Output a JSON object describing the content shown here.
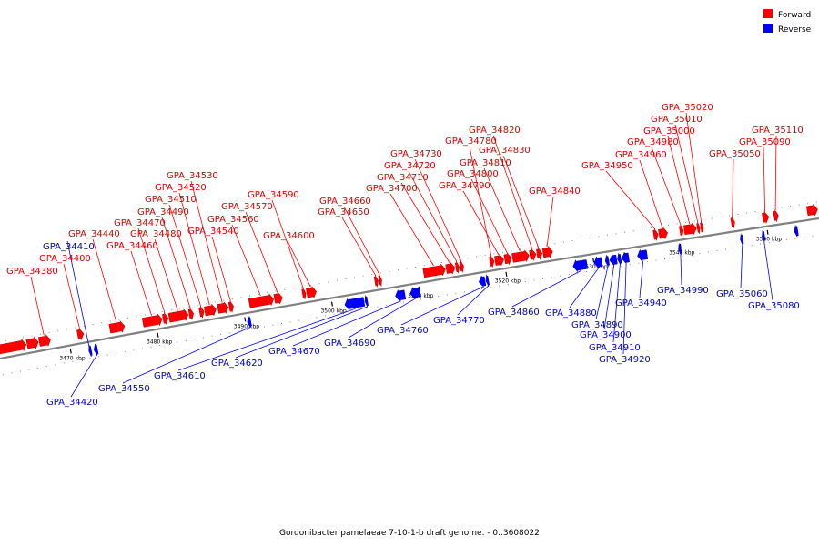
{
  "legend": [
    {
      "label": "Forward",
      "color": "#ff0000"
    },
    {
      "label": "Reverse",
      "color": "#0000ff"
    }
  ],
  "caption": "Gordonibacter pamelaeae 7-10-1-b draft genome. - 0..3608022",
  "colors": {
    "forward": "#ff0000",
    "reverse": "#0000ff",
    "backbone": "#808080",
    "tick": "#000000"
  },
  "axis": {
    "start_kbp": 3462,
    "end_kbp": 3556,
    "unit": "kbp"
  },
  "scale_ticks": [
    {
      "kbp": 3470,
      "label": "3470 kbp"
    },
    {
      "kbp": 3480,
      "label": "3480 kbp"
    },
    {
      "kbp": 3490,
      "label": "3490 kbp"
    },
    {
      "kbp": 3500,
      "label": "3500 kbp"
    },
    {
      "kbp": 3510,
      "label": "3510 kbp"
    },
    {
      "kbp": 3520,
      "label": "3520 kbp"
    },
    {
      "kbp": 3530,
      "label": "3530 kbp"
    },
    {
      "kbp": 3540,
      "label": "3540 kbp"
    },
    {
      "kbp": 3550,
      "label": "3550 kbp"
    }
  ],
  "genes": [
    {
      "label": "",
      "strand": "+",
      "start": 3462.0,
      "end": 3465.2
    },
    {
      "label": "",
      "strand": "+",
      "start": 3465.3,
      "end": 3466.6
    },
    {
      "label": "GPA_34380",
      "strand": "+",
      "start": 3466.7,
      "end": 3468.0
    },
    {
      "label": "GPA_34400",
      "strand": "+",
      "start": 3471.1,
      "end": 3471.8
    },
    {
      "label": "GPA_34410",
      "strand": "-",
      "start": 3472.0,
      "end": 3472.3
    },
    {
      "label": "GPA_34420",
      "strand": "-",
      "start": 3472.6,
      "end": 3473.0
    },
    {
      "label": "GPA_34440",
      "strand": "+",
      "start": 3474.8,
      "end": 3476.5
    },
    {
      "label": "GPA_34460",
      "strand": "+",
      "start": 3478.6,
      "end": 3480.8
    },
    {
      "label": "GPA_34470",
      "strand": "+",
      "start": 3480.9,
      "end": 3481.5
    },
    {
      "label": "GPA_34480",
      "strand": "+",
      "start": 3481.6,
      "end": 3483.8
    },
    {
      "label": "GPA_34490",
      "strand": "+",
      "start": 3483.9,
      "end": 3484.4
    },
    {
      "label": "GPA_34510",
      "strand": "+",
      "start": 3485.1,
      "end": 3485.6
    },
    {
      "label": "GPA_34520",
      "strand": "+",
      "start": 3485.7,
      "end": 3487.0
    },
    {
      "label": "GPA_34530",
      "strand": "+",
      "start": 3487.2,
      "end": 3488.4
    },
    {
      "label": "GPA_34540",
      "strand": "+",
      "start": 3488.5,
      "end": 3489.0
    },
    {
      "label": "GPA_34550",
      "strand": "-",
      "start": 3490.2,
      "end": 3490.6
    },
    {
      "label": "GPA_34560",
      "strand": "+",
      "start": 3490.8,
      "end": 3493.6
    },
    {
      "label": "GPA_34570",
      "strand": "+",
      "start": 3493.7,
      "end": 3494.6
    },
    {
      "label": "GPA_34590",
      "strand": "+",
      "start": 3496.9,
      "end": 3497.3
    },
    {
      "label": "GPA_34600",
      "strand": "+",
      "start": 3497.4,
      "end": 3498.5
    },
    {
      "label": "GPA_34610",
      "strand": "-",
      "start": 3501.4,
      "end": 3503.6
    },
    {
      "label": "GPA_34620",
      "strand": "-",
      "start": 3503.7,
      "end": 3504.0
    },
    {
      "label": "GPA_34650",
      "strand": "+",
      "start": 3505.2,
      "end": 3505.6
    },
    {
      "label": "GPA_34660",
      "strand": "+",
      "start": 3505.7,
      "end": 3506.0
    },
    {
      "label": "GPA_34670",
      "strand": "-",
      "start": 3507.2,
      "end": 3508.3
    },
    {
      "label": "GPA_34690",
      "strand": "-",
      "start": 3508.9,
      "end": 3510.0
    },
    {
      "label": "GPA_34700",
      "strand": "+",
      "start": 3510.8,
      "end": 3513.3
    },
    {
      "label": "GPA_34710",
      "strand": "+",
      "start": 3513.4,
      "end": 3514.4
    },
    {
      "label": "GPA_34720",
      "strand": "+",
      "start": 3514.5,
      "end": 3514.9
    },
    {
      "label": "GPA_34730",
      "strand": "+",
      "start": 3515.0,
      "end": 3515.4
    },
    {
      "label": "GPA_34760",
      "strand": "-",
      "start": 3516.8,
      "end": 3517.5
    },
    {
      "label": "GPA_34770",
      "strand": "-",
      "start": 3517.6,
      "end": 3517.9
    },
    {
      "label": "GPA_34780",
      "strand": "+",
      "start": 3518.4,
      "end": 3518.9
    },
    {
      "label": "GPA_34790",
      "strand": "+",
      "start": 3519.0,
      "end": 3520.0
    },
    {
      "label": "GPA_34800",
      "strand": "+",
      "start": 3520.1,
      "end": 3520.9
    },
    {
      "label": "GPA_34810",
      "strand": "+",
      "start": 3521.0,
      "end": 3522.9
    },
    {
      "label": "GPA_34820",
      "strand": "+",
      "start": 3523.0,
      "end": 3523.7
    },
    {
      "label": "GPA_34830",
      "strand": "+",
      "start": 3523.8,
      "end": 3524.4
    },
    {
      "label": "GPA_34840",
      "strand": "+",
      "start": 3524.5,
      "end": 3525.6
    },
    {
      "label": "GPA_34860",
      "strand": "-",
      "start": 3527.6,
      "end": 3529.2
    },
    {
      "label": "GPA_34880",
      "strand": "-",
      "start": 3530.0,
      "end": 3530.9
    },
    {
      "label": "GPA_34890",
      "strand": "-",
      "start": 3531.3,
      "end": 3531.7
    },
    {
      "label": "GPA_34900",
      "strand": "-",
      "start": 3531.8,
      "end": 3532.6
    },
    {
      "label": "GPA_34910",
      "strand": "-",
      "start": 3532.7,
      "end": 3533.1
    },
    {
      "label": "GPA_34920",
      "strand": "-",
      "start": 3533.2,
      "end": 3534.0
    },
    {
      "label": "GPA_34940",
      "strand": "-",
      "start": 3535.0,
      "end": 3536.1
    },
    {
      "label": "GPA_34950",
      "strand": "+",
      "start": 3537.2,
      "end": 3537.7
    },
    {
      "label": "GPA_34960",
      "strand": "+",
      "start": 3537.8,
      "end": 3538.8
    },
    {
      "label": "GPA_34980",
      "strand": "+",
      "start": 3540.2,
      "end": 3540.6
    },
    {
      "label": "GPA_34990",
      "strand": "-",
      "start": 3539.7,
      "end": 3540.0
    },
    {
      "label": "GPA_35000",
      "strand": "+",
      "start": 3540.7,
      "end": 3542.1
    },
    {
      "label": "GPA_35010",
      "strand": "+",
      "start": 3542.2,
      "end": 3542.5
    },
    {
      "label": "GPA_35020",
      "strand": "+",
      "start": 3542.6,
      "end": 3542.9
    },
    {
      "label": "GPA_35050",
      "strand": "+",
      "start": 3546.1,
      "end": 3546.5
    },
    {
      "label": "GPA_35060",
      "strand": "-",
      "start": 3546.8,
      "end": 3547.1
    },
    {
      "label": "GPA_35080",
      "strand": "-",
      "start": 3549.3,
      "end": 3549.6
    },
    {
      "label": "GPA_35090",
      "strand": "+",
      "start": 3549.7,
      "end": 3550.4
    },
    {
      "label": "GPA_35110",
      "strand": "+",
      "start": 3551.0,
      "end": 3551.5
    },
    {
      "label": "",
      "strand": "-",
      "start": 3553.0,
      "end": 3553.4
    },
    {
      "label": "",
      "strand": "+",
      "start": 3554.8,
      "end": 3556.0
    }
  ]
}
